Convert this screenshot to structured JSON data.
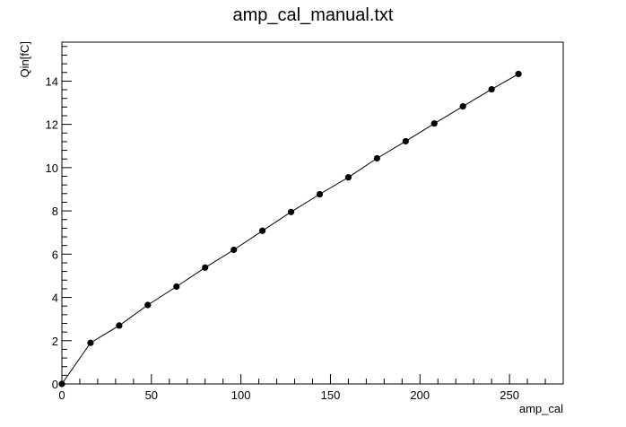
{
  "chart_data": {
    "type": "scatter",
    "title": "amp_cal_manual.txt",
    "xlabel": "amp_cal",
    "ylabel": "Qin[fC]",
    "xlim": [
      0,
      280
    ],
    "ylim": [
      0,
      15.8
    ],
    "xticks": [
      "0",
      "50",
      "100",
      "150",
      "200",
      "250"
    ],
    "yticks": [
      "0",
      "2",
      "4",
      "6",
      "8",
      "10",
      "12",
      "14"
    ],
    "grid": false,
    "connected": true,
    "series": [
      {
        "x": [
          0,
          16,
          32,
          48,
          64,
          80,
          96,
          112,
          128,
          144,
          160,
          176,
          192,
          208,
          224,
          240,
          255
        ],
        "y": [
          0.0,
          1.9,
          2.7,
          3.65,
          4.5,
          5.38,
          6.2,
          7.08,
          7.95,
          8.77,
          9.55,
          10.43,
          11.22,
          12.04,
          12.83,
          13.62,
          14.33
        ]
      }
    ],
    "colors": {
      "marker": "#000000",
      "line": "#000000",
      "frame": "#000000"
    }
  }
}
